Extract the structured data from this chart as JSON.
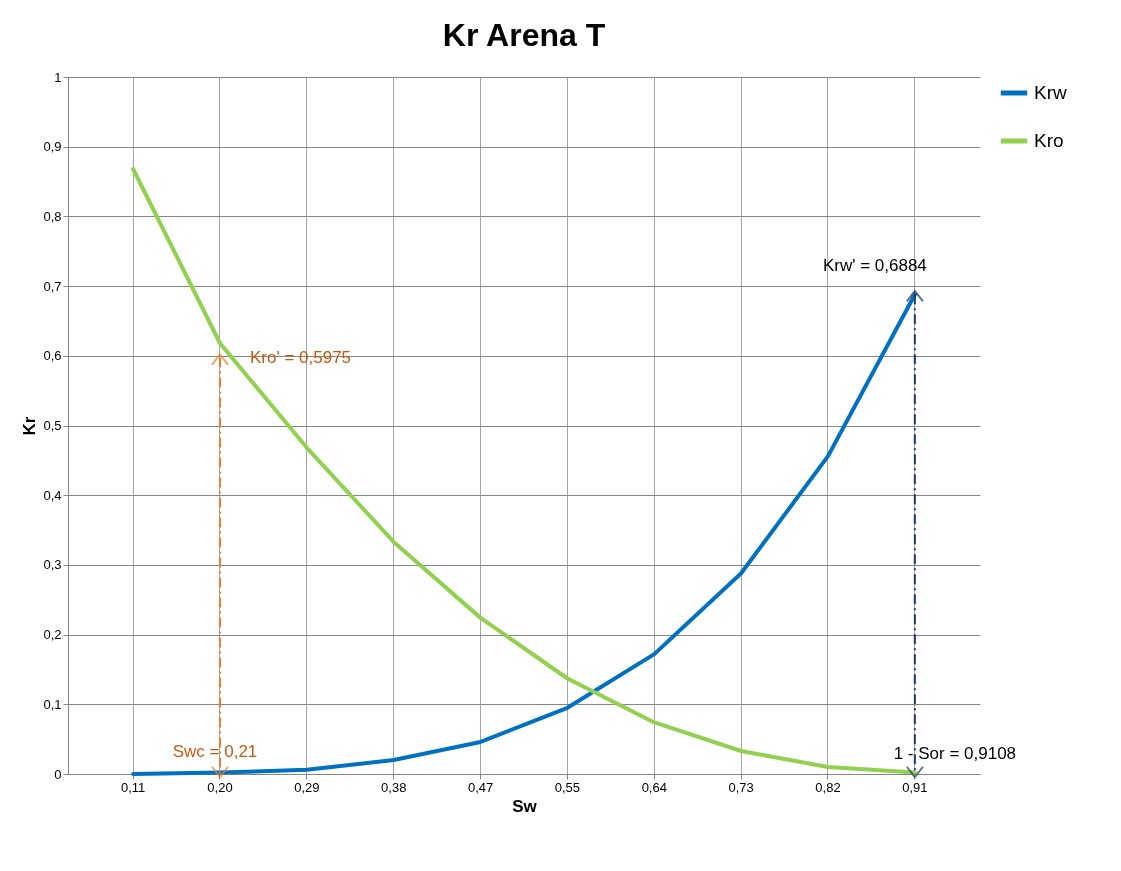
{
  "chart_data": {
    "type": "line",
    "title": "Kr Arena T",
    "xlabel": "Sw",
    "ylabel": "Kr",
    "categories": [
      "0,11",
      "0,20",
      "0,29",
      "0,38",
      "0,47",
      "0,55",
      "0,64",
      "0,73",
      "0,82",
      "0,91"
    ],
    "series": [
      {
        "name": "Krw",
        "color": "#0070c0",
        "values": [
          0.0,
          0.002,
          0.006,
          0.02,
          0.046,
          0.095,
          0.172,
          0.288,
          0.456,
          0.688
        ]
      },
      {
        "name": "Kro",
        "color": "#92d050",
        "values": [
          0.868,
          0.618,
          0.468,
          0.333,
          0.224,
          0.137,
          0.074,
          0.033,
          0.01,
          0.002
        ]
      }
    ],
    "ylim": [
      0,
      1
    ],
    "yticks": [
      0,
      {
        "value": 0.1,
        "label": "0,1"
      },
      {
        "value": 0.2,
        "label": "0,2"
      },
      {
        "value": 0.3,
        "label": "0,3"
      },
      {
        "value": 0.4,
        "label": "0,4"
      },
      {
        "value": 0.5,
        "label": "0,5"
      },
      {
        "value": 0.6,
        "label": "0,6"
      },
      {
        "value": 0.7,
        "label": "0,7"
      },
      {
        "value": 0.8,
        "label": "0,8"
      },
      {
        "value": 0.9,
        "label": "0,9"
      },
      1
    ],
    "annotations": [
      {
        "text": "Kro' = 0,5975",
        "x": "0,20",
        "y": 0.5975
      },
      {
        "text": "Swc = 0,21",
        "x": "0,20",
        "y": 0
      },
      {
        "text": "Krw' = 0,6884",
        "x": "0,91",
        "y": 0.6884
      },
      {
        "text": "1 - Sor =  0,9108",
        "x": "0,91",
        "y": 0
      }
    ],
    "grid": true,
    "legend": "right",
    "marker": "none",
    "line_style": "solid"
  }
}
